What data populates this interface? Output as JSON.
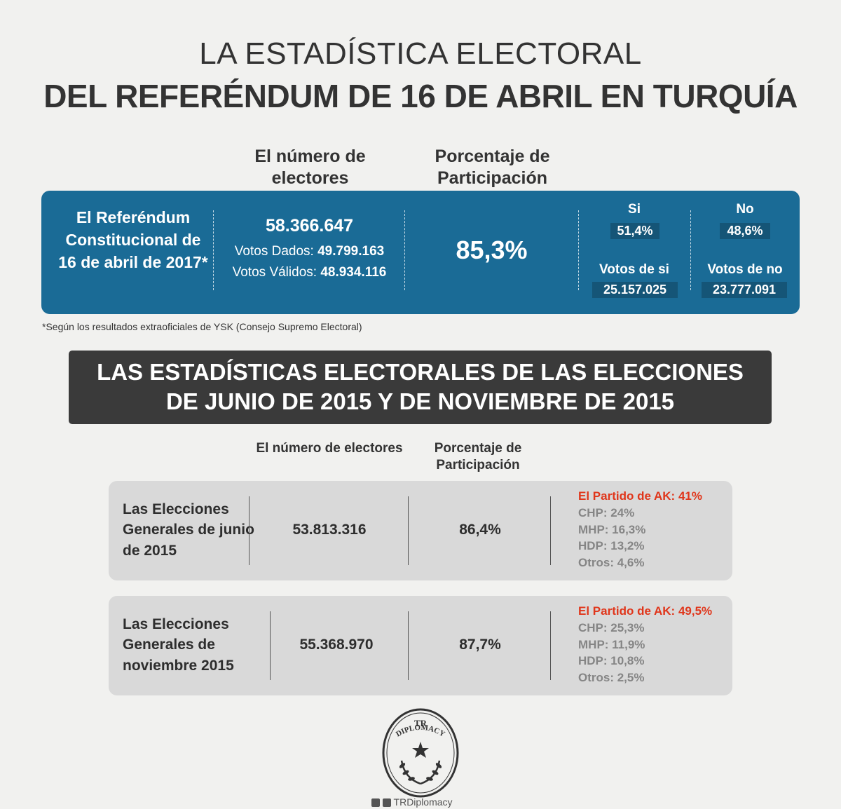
{
  "title": {
    "line1": "LA ESTADÍSTICA ELECTORAL",
    "line2": "DEL REFERÉNDUM DE 16 DE ABRIL EN TURQUÍA"
  },
  "referendum": {
    "header_electors": "El número de electores",
    "header_participation": "Porcentaje de Participación",
    "label": "El Referéndum Constitucional de 16 de abril de 2017*",
    "electors": "58.366.647",
    "votos_dados_label": "Votos Dados:",
    "votos_dados": "49.799.163",
    "votos_validos_label": "Votos Válidos:",
    "votos_validos": "48.934.116",
    "participation": "85,3%",
    "si_label": "Si",
    "si_pct": "51,4%",
    "si_votes_label": "Votos de si",
    "si_votes": "25.157.025",
    "no_label": "No",
    "no_pct": "48,6%",
    "no_votes_label": "Votos de no",
    "no_votes": "23.777.091",
    "footnote": "*Según los resultados extraoficiales de YSK (Consejo Supremo Electoral)"
  },
  "section": {
    "banner_line1": "LAS ESTADÍSTICAS ELECTORALES DE LAS ELECCIONES",
    "banner_line2": "DE JUNIO DE 2015 Y DE NOVIEMBRE DE 2015",
    "header_electors": "El número de electores",
    "header_participation": "Porcentaje de Participación"
  },
  "elections": [
    {
      "label": "Las Elecciones Generales de junio de 2015",
      "electors": "53.813.316",
      "participation": "86,4%",
      "ak": "El Partido de AK: 41%",
      "chp": "CHP: 24%",
      "mhp": "MHP: 16,3%",
      "hdp": "HDP: 13,2%",
      "otros": "Otros: 4,6%"
    },
    {
      "label": "Las Elecciones Generales de noviembre 2015",
      "electors": "55.368.970",
      "participation": "87,7%",
      "ak": "El Partido de AK: 49,5%",
      "chp": "CHP: 25,3%",
      "mhp": "MHP: 11,9%",
      "hdp": "HDP: 10,8%",
      "otros": "Otros: 2,5%"
    }
  ],
  "logo": {
    "text_top": "TR",
    "text_arc": "DIPLOMACY",
    "icon": "star-laurel-emblem"
  },
  "social": {
    "handle": "TRDiplomacy",
    "icons": [
      "twitter-icon",
      "facebook-icon"
    ]
  },
  "colors": {
    "background": "#f1f1ef",
    "referendum_box": "#1a6b96",
    "banner": "#3a3a3a",
    "election_box": "#d9d9d9",
    "ak_red": "#e0361b",
    "other_parties": "#858585"
  }
}
